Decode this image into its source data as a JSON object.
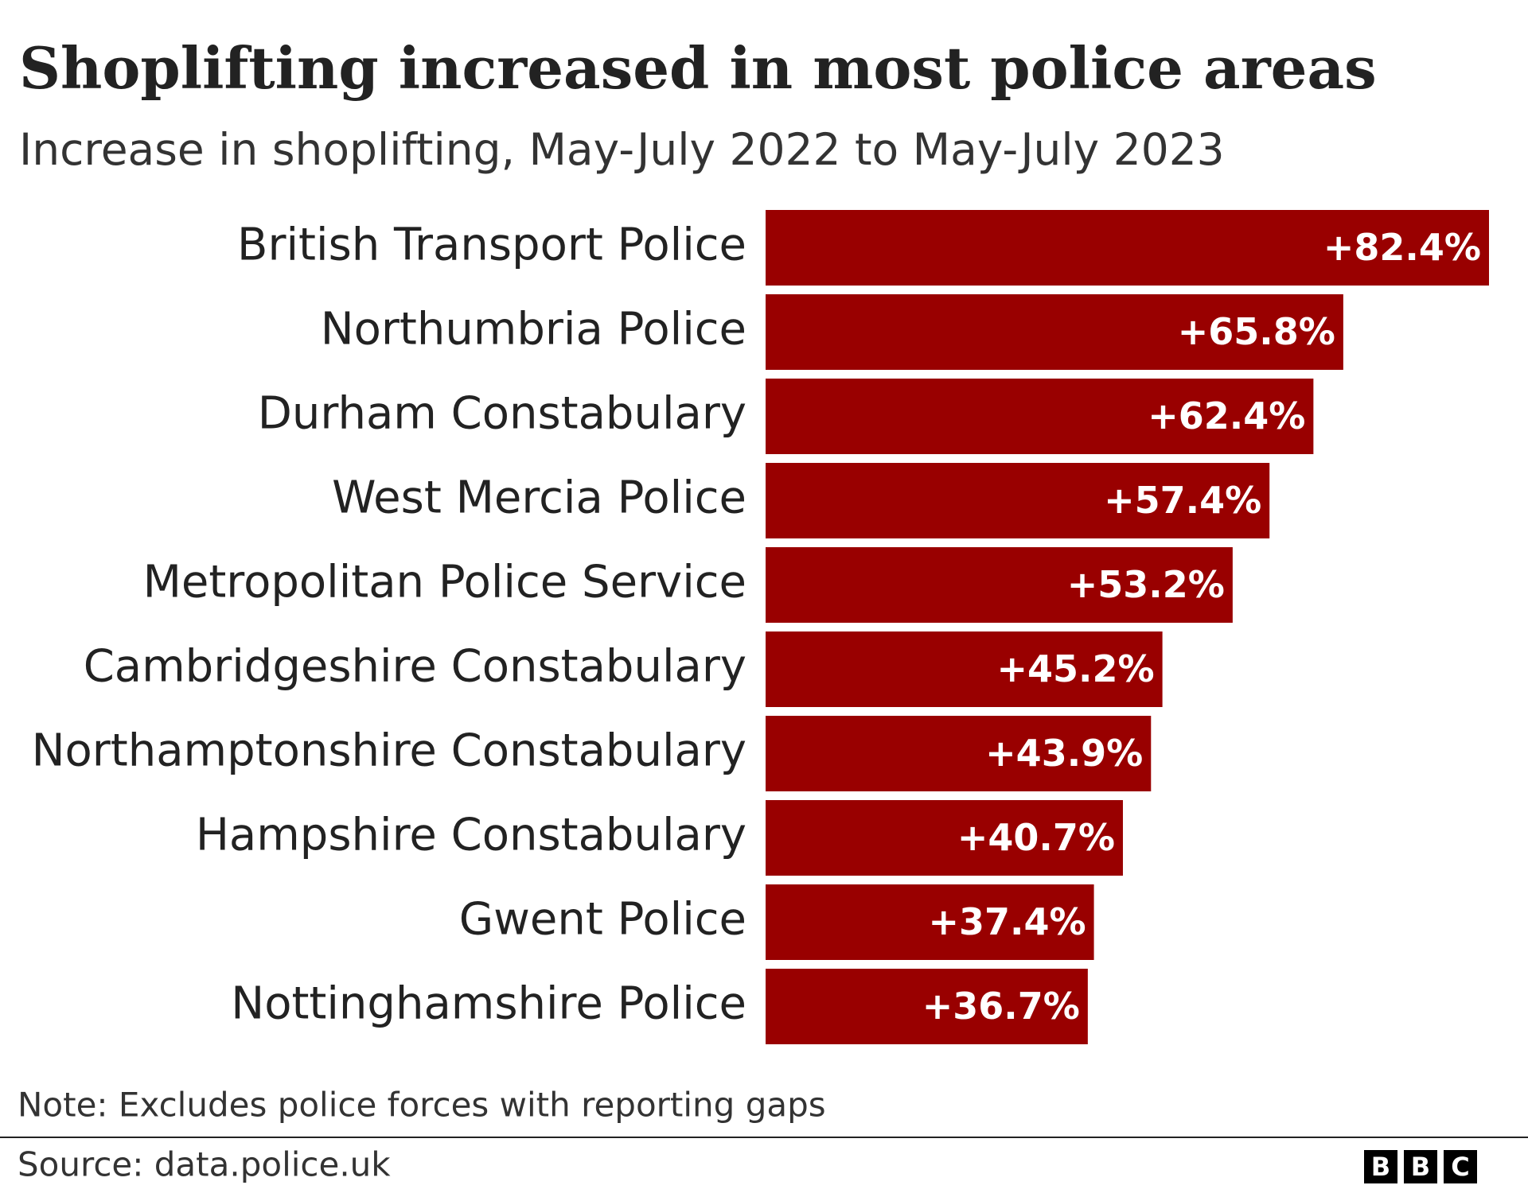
{
  "chart_data": {
    "type": "hbar",
    "title": "Shoplifting increased in most police areas",
    "subtitle": "Increase in shoplifting, May-July 2022 to May-July 2023",
    "categories": [
      "British Transport Police",
      "Northumbria Police",
      "Durham Constabulary",
      "West Mercia Police",
      "Metropolitan Police Service",
      "Cambridgeshire Constabulary",
      "Northamptonshire Constabulary",
      "Hampshire Constabulary",
      "Gwent Police",
      "Nottinghamshire Police"
    ],
    "values": [
      82.4,
      65.8,
      62.4,
      57.4,
      53.2,
      45.2,
      43.9,
      40.7,
      37.4,
      36.7
    ],
    "value_labels": [
      "+82.4%",
      "+65.8%",
      "+62.4%",
      "+57.4%",
      "+53.2%",
      "+45.2%",
      "+43.9%",
      "+40.7%",
      "+37.4%",
      "+36.7%"
    ],
    "color": "#990000",
    "note": "Note: Excludes police forces with reporting gaps",
    "source": "Source: data.police.uk",
    "logo": [
      "B",
      "B",
      "C"
    ]
  }
}
